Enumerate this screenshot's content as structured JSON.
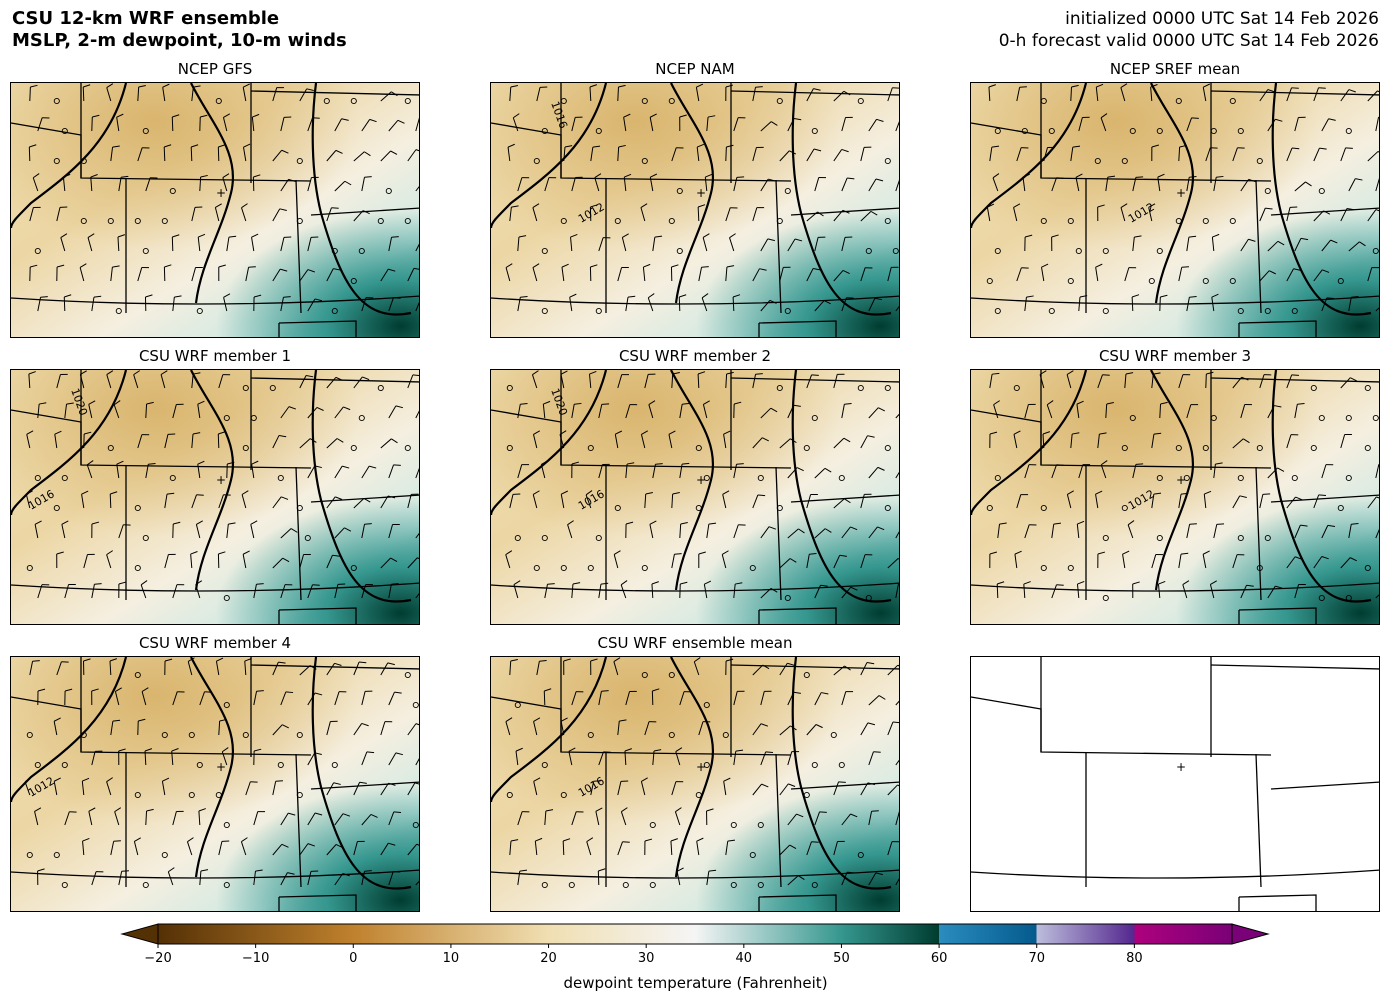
{
  "header": {
    "title_line1": "CSU 12-km WRF ensemble",
    "title_line2": "MSLP, 2-m dewpoint, 10-m winds",
    "init_line": "initialized 0000 UTC Sat 14 Feb 2026",
    "valid_line": "0-h forecast valid 0000 UTC Sat 14 Feb 2026"
  },
  "panels": [
    {
      "title": "NCEP GFS",
      "contour_labels": []
    },
    {
      "title": "NCEP NAM",
      "contour_labels": [
        "1012",
        "1016"
      ]
    },
    {
      "title": "NCEP SREF mean",
      "contour_labels": [
        "1012"
      ]
    },
    {
      "title": "CSU WRF member 1",
      "contour_labels": [
        "1016",
        "1020"
      ]
    },
    {
      "title": "CSU WRF member 2",
      "contour_labels": [
        "1016",
        "1020"
      ]
    },
    {
      "title": "CSU WRF member 3",
      "contour_labels": [
        "1012"
      ]
    },
    {
      "title": "CSU WRF member 4",
      "contour_labels": [
        "1012"
      ]
    },
    {
      "title": "CSU WRF ensemble mean",
      "contour_labels": [
        "1016"
      ]
    },
    {
      "title": "",
      "contour_labels": []
    }
  ],
  "colorbar": {
    "label": "dewpoint temperature (Fahrenheit)",
    "min": -20,
    "max": 90,
    "ticks": [
      "−20",
      "−10",
      "0",
      "10",
      "20",
      "30",
      "40",
      "50",
      "60",
      "70",
      "80"
    ],
    "colors": {
      "brown_dark": "#543005",
      "brown": "#bf812d",
      "tan": "#f0dfb2",
      "white": "#f5f5f5",
      "teal": "#35978f",
      "teal_dark": "#003c30",
      "blue": "#2b8cbe",
      "blue_dark": "#045a8d",
      "purple_light": "#bcbddc",
      "purple": "#54278f",
      "magenta": "#ae017e",
      "magenta_dark": "#7a0177"
    }
  },
  "icons": {
    "station_marker": "plus-marker-icon",
    "wind_barb": "wind-barb-icon",
    "calm_wind": "calm-circle-icon"
  }
}
